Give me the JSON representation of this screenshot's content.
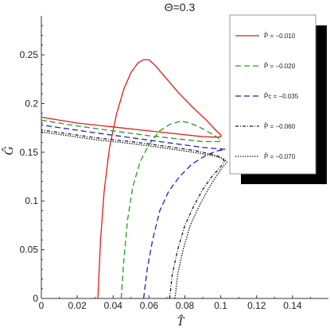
{
  "chart_data": {
    "type": "line",
    "title": "Θ=0.3",
    "xlabel": "T̂",
    "ylabel": "Ĝ",
    "xlim": [
      0,
      0.16
    ],
    "ylim": [
      0,
      0.29
    ],
    "x_ticks": [
      "0",
      "0.02",
      "0.04",
      "0.06",
      "0.08",
      "0.1",
      "0.12",
      "0.14"
    ],
    "y_ticks": [
      "0",
      "0.05",
      "0.1",
      "0.15",
      "0.2",
      "0.25"
    ],
    "grid": false,
    "legend_position": "top-right",
    "series": [
      {
        "name": "P̂ = −0.010",
        "color": "#e8191a",
        "dash": "solid",
        "points": [
          [
            0.0315,
            0.0
          ],
          [
            0.033,
            0.06
          ],
          [
            0.035,
            0.11
          ],
          [
            0.038,
            0.155
          ],
          [
            0.042,
            0.19
          ],
          [
            0.046,
            0.215
          ],
          [
            0.05,
            0.232
          ],
          [
            0.054,
            0.242
          ],
          [
            0.057,
            0.245
          ],
          [
            0.06,
            0.245
          ],
          [
            0.064,
            0.238
          ],
          [
            0.07,
            0.225
          ],
          [
            0.077,
            0.21
          ],
          [
            0.085,
            0.195
          ],
          [
            0.092,
            0.183
          ],
          [
            0.097,
            0.173
          ],
          [
            0.1,
            0.168
          ],
          [
            0.1,
            0.166
          ],
          [
            0.098,
            0.1655
          ],
          [
            0.09,
            0.166
          ],
          [
            0.08,
            0.168
          ],
          [
            0.06,
            0.172
          ],
          [
            0.04,
            0.176
          ],
          [
            0.02,
            0.18
          ],
          [
            0.0,
            0.186
          ]
        ]
      },
      {
        "name": "P̂ = −0.020",
        "color": "#1f9d1f",
        "dash": "dash",
        "points": [
          [
            0.0445,
            0.0
          ],
          [
            0.046,
            0.04
          ],
          [
            0.048,
            0.08
          ],
          [
            0.051,
            0.115
          ],
          [
            0.055,
            0.14
          ],
          [
            0.06,
            0.158
          ],
          [
            0.066,
            0.172
          ],
          [
            0.072,
            0.179
          ],
          [
            0.078,
            0.182
          ],
          [
            0.083,
            0.18
          ],
          [
            0.089,
            0.175
          ],
          [
            0.095,
            0.169
          ],
          [
            0.0985,
            0.165
          ],
          [
            0.1,
            0.162
          ],
          [
            0.099,
            0.161
          ],
          [
            0.09,
            0.161
          ],
          [
            0.08,
            0.163
          ],
          [
            0.06,
            0.167
          ],
          [
            0.04,
            0.172
          ],
          [
            0.02,
            0.177
          ],
          [
            0.0,
            0.183
          ]
        ]
      },
      {
        "name": "P̂ᴄ = −0.035",
        "color": "#1e1ed2",
        "dash": "dash",
        "points": [
          [
            0.057,
            0.0
          ],
          [
            0.059,
            0.03
          ],
          [
            0.062,
            0.06
          ],
          [
            0.066,
            0.09
          ],
          [
            0.071,
            0.11
          ],
          [
            0.077,
            0.125
          ],
          [
            0.084,
            0.138
          ],
          [
            0.091,
            0.146
          ],
          [
            0.097,
            0.151
          ],
          [
            0.1025,
            0.153
          ],
          [
            0.09,
            0.155
          ],
          [
            0.07,
            0.16
          ],
          [
            0.05,
            0.165
          ],
          [
            0.03,
            0.17
          ],
          [
            0.015,
            0.174
          ],
          [
            0.0,
            0.178
          ]
        ]
      },
      {
        "name": "P̂ = −0.060",
        "color": "#1a1a1a",
        "dash": "dashdot",
        "points": [
          [
            0.0715,
            0.0
          ],
          [
            0.073,
            0.025
          ],
          [
            0.076,
            0.05
          ],
          [
            0.08,
            0.075
          ],
          [
            0.085,
            0.095
          ],
          [
            0.09,
            0.112
          ],
          [
            0.095,
            0.125
          ],
          [
            0.099,
            0.133
          ],
          [
            0.101,
            0.138
          ],
          [
            0.102,
            0.141
          ],
          [
            0.1,
            0.145
          ],
          [
            0.095,
            0.148
          ],
          [
            0.085,
            0.152
          ],
          [
            0.07,
            0.156
          ],
          [
            0.05,
            0.161
          ],
          [
            0.03,
            0.165
          ],
          [
            0.015,
            0.169
          ],
          [
            0.0,
            0.173
          ]
        ]
      },
      {
        "name": "P̂ = −0.070",
        "color": "#1a1a1a",
        "dash": "dot",
        "points": [
          [
            0.0745,
            0.0
          ],
          [
            0.076,
            0.025
          ],
          [
            0.079,
            0.05
          ],
          [
            0.083,
            0.075
          ],
          [
            0.088,
            0.095
          ],
          [
            0.093,
            0.112
          ],
          [
            0.097,
            0.124
          ],
          [
            0.1,
            0.132
          ],
          [
            0.102,
            0.137
          ],
          [
            0.1035,
            0.14
          ],
          [
            0.102,
            0.143
          ],
          [
            0.097,
            0.146
          ],
          [
            0.085,
            0.15
          ],
          [
            0.07,
            0.154
          ],
          [
            0.05,
            0.159
          ],
          [
            0.03,
            0.163
          ],
          [
            0.015,
            0.167
          ],
          [
            0.0,
            0.171
          ]
        ]
      }
    ]
  }
}
